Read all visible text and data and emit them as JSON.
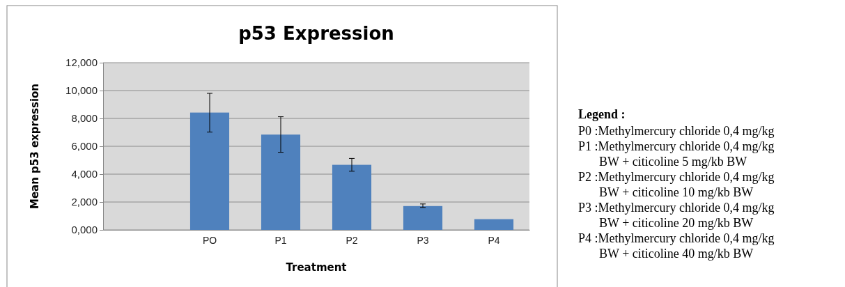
{
  "chart_data": {
    "type": "bar",
    "title": "p53 Expression",
    "xlabel": "Treatment",
    "ylabel": "Mean p53 expression",
    "categories": [
      null,
      "PO",
      "P1",
      "P2",
      "P3",
      "P4"
    ],
    "values": [
      null,
      8.42,
      6.84,
      4.67,
      1.71,
      0.77
    ],
    "errors": [
      null,
      [
        7.02,
        9.8
      ],
      [
        5.57,
        8.12
      ],
      [
        4.21,
        5.13
      ],
      [
        1.61,
        1.86
      ],
      null
    ],
    "color": "#4f81bd",
    "ylim": [
      0,
      12
    ],
    "yticks": [
      {
        "value": 0,
        "label": "0,000"
      },
      {
        "value": 2,
        "label": "2,000"
      },
      {
        "value": 4,
        "label": "4,000"
      },
      {
        "value": 6,
        "label": "6,000"
      },
      {
        "value": 8,
        "label": "8,000"
      },
      {
        "value": 10,
        "label": "10,000"
      },
      {
        "value": 12,
        "label": "12,000"
      }
    ],
    "grid": "y",
    "annotations": [
      "Legend :",
      "P0 :Methylmercury chloride 0,4 mg/kg",
      "P1 :Methylmercury chloride 0,4 mg/kg BW + citicoline 5 mg/kb BW",
      "P2 :Methylmercury chloride 0,4 mg/kg BW + citicoline 10 mg/kb BW",
      "P3 :Methylmercury chloride 0,4 mg/kg BW + citicoline 20 mg/kb BW",
      "P4 :Methylmercury chloride 0,4 mg/kg BW + citicoline 40 mg/kb BW"
    ]
  }
}
